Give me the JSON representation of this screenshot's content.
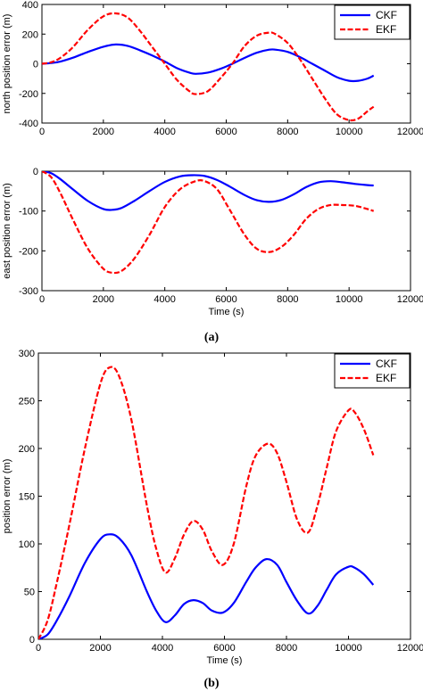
{
  "chart_data": [
    {
      "type": "line",
      "ylabel": "north position error (m)",
      "xlabel": "",
      "xlim": [
        0,
        12000
      ],
      "ylim": [
        -400,
        400
      ],
      "xticks": [
        0,
        2000,
        4000,
        6000,
        8000,
        10000,
        12000
      ],
      "yticks": [
        -400,
        -200,
        0,
        200,
        400
      ],
      "legend_position": "top-right",
      "series": [
        {
          "name": "CKF",
          "color": "#0000ff",
          "dash": "solid",
          "x": [
            0,
            300,
            600,
            1000,
            1500,
            2000,
            2400,
            2800,
            3200,
            3600,
            4000,
            4400,
            4800,
            5000,
            5400,
            5800,
            6200,
            6600,
            7000,
            7400,
            7600,
            8000,
            8400,
            8800,
            9200,
            9600,
            10000,
            10300,
            10600,
            10800
          ],
          "y": [
            0,
            5,
            15,
            40,
            80,
            115,
            130,
            120,
            90,
            55,
            15,
            -30,
            -60,
            -68,
            -60,
            -35,
            0,
            40,
            75,
            95,
            95,
            80,
            45,
            0,
            -45,
            -90,
            -115,
            -115,
            -100,
            -80
          ]
        },
        {
          "name": "EKF",
          "color": "#ff0000",
          "dash": "dashed",
          "x": [
            0,
            300,
            600,
            1000,
            1500,
            2000,
            2400,
            2800,
            3200,
            3600,
            4000,
            4400,
            4800,
            5000,
            5400,
            5800,
            6200,
            6600,
            7000,
            7400,
            7600,
            8000,
            8400,
            8800,
            9200,
            9600,
            10000,
            10300,
            10600,
            10800
          ],
          "y": [
            0,
            10,
            40,
            110,
            230,
            320,
            340,
            310,
            220,
            110,
            0,
            -110,
            -185,
            -205,
            -185,
            -100,
            0,
            120,
            190,
            210,
            200,
            140,
            30,
            -100,
            -230,
            -340,
            -380,
            -370,
            -320,
            -290
          ]
        }
      ]
    },
    {
      "type": "line",
      "ylabel": "east position error (m)",
      "xlabel": "Time (s)",
      "xlim": [
        0,
        12000
      ],
      "ylim": [
        -300,
        0
      ],
      "xticks": [
        0,
        2000,
        4000,
        6000,
        8000,
        10000,
        12000
      ],
      "yticks": [
        -300,
        -200,
        -100,
        0
      ],
      "series": [
        {
          "name": "CKF",
          "color": "#0000ff",
          "dash": "solid",
          "x": [
            0,
            300,
            600,
            1000,
            1500,
            2000,
            2300,
            2600,
            3000,
            3500,
            4000,
            4500,
            4900,
            5300,
            5700,
            6100,
            6600,
            7000,
            7400,
            7800,
            8200,
            8600,
            9000,
            9400,
            9800,
            10200,
            10600,
            10800
          ],
          "y": [
            0,
            -5,
            -20,
            -45,
            -75,
            -95,
            -97,
            -92,
            -75,
            -50,
            -27,
            -13,
            -10,
            -12,
            -22,
            -38,
            -60,
            -73,
            -77,
            -72,
            -58,
            -40,
            -28,
            -25,
            -28,
            -32,
            -35,
            -36
          ]
        },
        {
          "name": "EKF",
          "color": "#ff0000",
          "dash": "dashed",
          "x": [
            0,
            300,
            600,
            1000,
            1500,
            2000,
            2300,
            2600,
            3000,
            3500,
            4000,
            4500,
            5000,
            5300,
            5700,
            6100,
            6600,
            7000,
            7400,
            7800,
            8200,
            8600,
            9000,
            9400,
            9800,
            10200,
            10600,
            10800
          ],
          "y": [
            0,
            -15,
            -55,
            -120,
            -195,
            -245,
            -255,
            -250,
            -220,
            -160,
            -90,
            -45,
            -25,
            -25,
            -45,
            -95,
            -160,
            -195,
            -203,
            -190,
            -160,
            -120,
            -95,
            -85,
            -85,
            -87,
            -95,
            -100
          ]
        }
      ]
    },
    {
      "type": "line",
      "ylabel": "position error (m)",
      "xlabel": "Time (s)",
      "xlim": [
        0,
        12000
      ],
      "ylim": [
        0,
        300
      ],
      "xticks": [
        0,
        2000,
        4000,
        6000,
        8000,
        10000,
        12000
      ],
      "yticks": [
        0,
        50,
        100,
        150,
        200,
        250,
        300
      ],
      "legend_position": "top-right",
      "series": [
        {
          "name": "CKF",
          "color": "#0000ff",
          "dash": "solid",
          "x": [
            0,
            300,
            600,
            1000,
            1500,
            2000,
            2300,
            2600,
            3000,
            3500,
            3800,
            4100,
            4400,
            4700,
            5000,
            5300,
            5600,
            5950,
            6300,
            6700,
            7000,
            7350,
            7700,
            8000,
            8350,
            8700,
            9000,
            9300,
            9600,
            10000,
            10200,
            10500,
            10800
          ],
          "y": [
            0,
            5,
            20,
            45,
            80,
            105,
            110,
            106,
            88,
            50,
            30,
            18,
            25,
            37,
            41,
            38,
            30,
            28,
            38,
            60,
            75,
            84,
            78,
            60,
            40,
            27,
            35,
            52,
            68,
            76,
            75,
            68,
            57
          ]
        },
        {
          "name": "EKF",
          "color": "#ff0000",
          "dash": "dashed",
          "x": [
            0,
            300,
            600,
            1000,
            1500,
            2000,
            2300,
            2600,
            3000,
            3500,
            3800,
            4100,
            4400,
            4700,
            5000,
            5300,
            5600,
            5950,
            6300,
            6700,
            7000,
            7400,
            7700,
            8000,
            8350,
            8700,
            9000,
            9300,
            9600,
            10000,
            10200,
            10500,
            10800
          ],
          "y": [
            0,
            20,
            60,
            120,
            200,
            268,
            285,
            276,
            230,
            140,
            95,
            70,
            85,
            110,
            124,
            115,
            92,
            78,
            100,
            160,
            192,
            205,
            195,
            165,
            125,
            112,
            140,
            180,
            218,
            240,
            238,
            220,
            193
          ]
        }
      ]
    }
  ],
  "captions": {
    "a": "(a)",
    "b": "(b)"
  }
}
